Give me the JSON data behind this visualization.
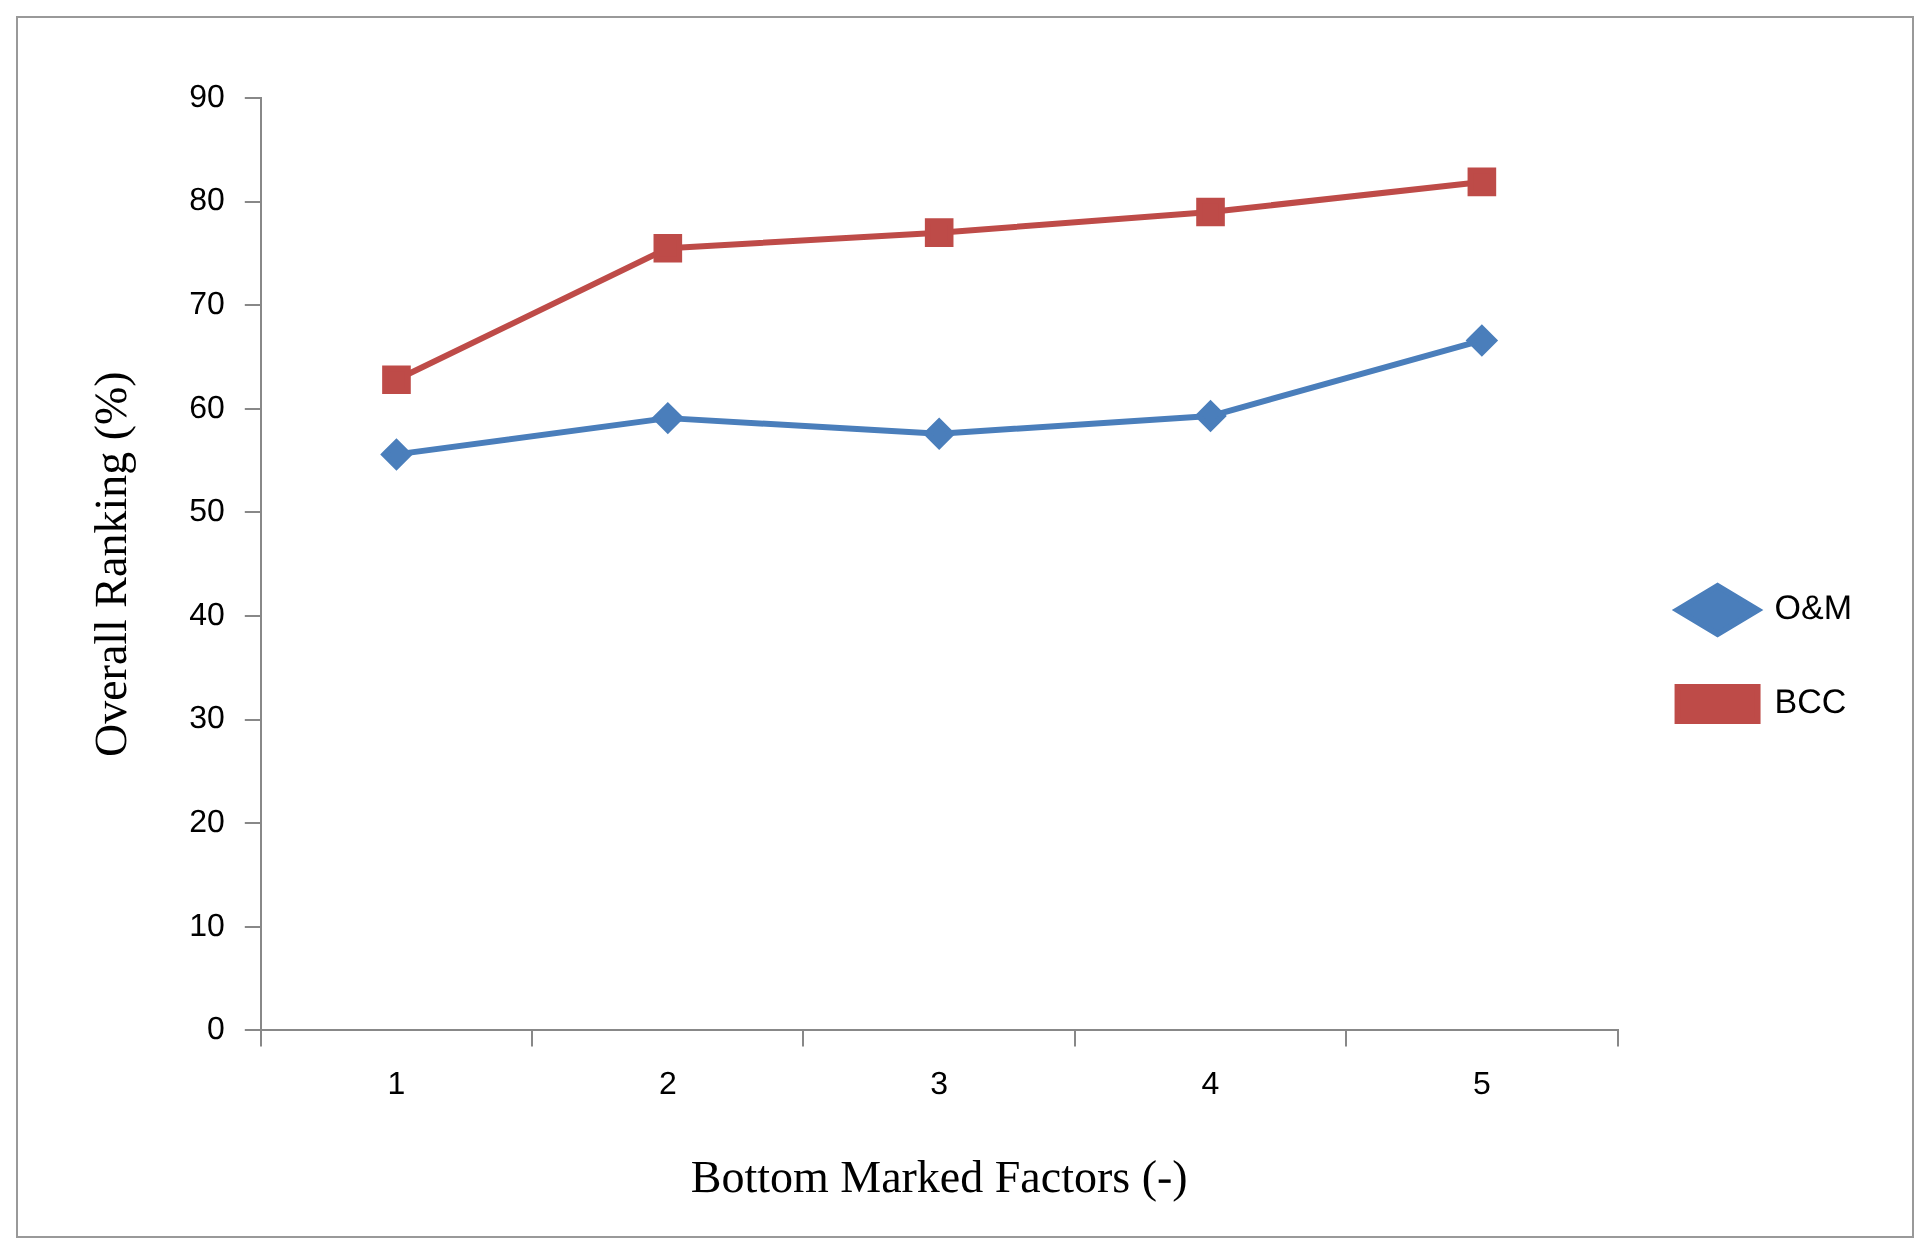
{
  "chart_data": {
    "type": "line",
    "xlabel": "Bottom Marked Factors (-)",
    "ylabel": "Overall Ranking (%)",
    "categories": [
      "1",
      "2",
      "3",
      "4",
      "5"
    ],
    "series": [
      {
        "name": "O&M",
        "color": "#4a7ebb",
        "marker": "diamond",
        "values": [
          55.6,
          59.1,
          57.6,
          59.3,
          66.6
        ]
      },
      {
        "name": "BCC",
        "color": "#be4b48",
        "marker": "square",
        "values": [
          62.8,
          75.5,
          77.0,
          79.0,
          81.9
        ]
      }
    ],
    "ylim": [
      0,
      90
    ],
    "yticks": [
      0,
      10,
      20,
      30,
      40,
      50,
      60,
      70,
      80,
      90
    ],
    "grid": false,
    "legend": "right",
    "line_style": "solid"
  }
}
